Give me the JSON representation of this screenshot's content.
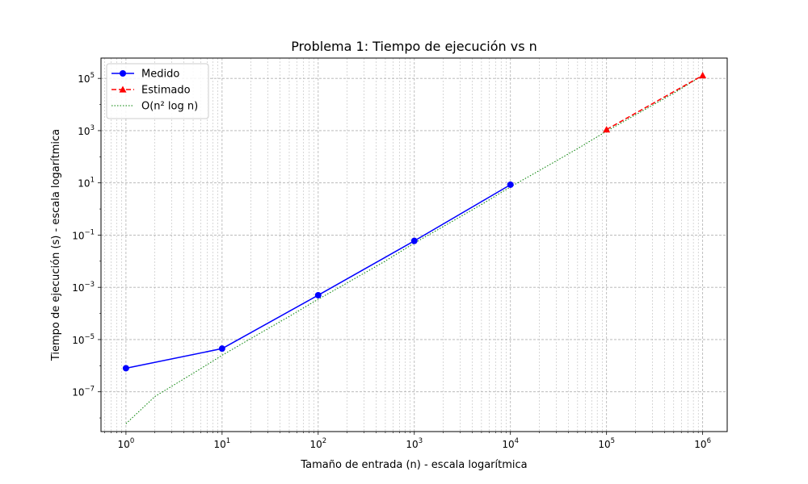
{
  "chart_data": {
    "type": "line",
    "title": "Problema 1: Tiempo de ejecución vs n",
    "xlabel": "Tamaño de entrada (n) - escala logarítmica",
    "ylabel": "Tiempo de ejecución (s) - escala logarítmica",
    "xscale": "log",
    "yscale": "log",
    "xlim": [
      0.55,
      1800000
    ],
    "ylim": [
      3e-09,
      600000
    ],
    "grid": true,
    "legend_position": "top-left",
    "x_ticks": [
      {
        "base": "10",
        "exp": "0",
        "value": 1
      },
      {
        "base": "10",
        "exp": "1",
        "value": 10
      },
      {
        "base": "10",
        "exp": "2",
        "value": 100
      },
      {
        "base": "10",
        "exp": "3",
        "value": 1000
      },
      {
        "base": "10",
        "exp": "4",
        "value": 10000
      },
      {
        "base": "10",
        "exp": "5",
        "value": 100000
      },
      {
        "base": "10",
        "exp": "6",
        "value": 1000000
      }
    ],
    "y_ticks": [
      {
        "base": "10",
        "exp": "−7",
        "value": 1e-07
      },
      {
        "base": "10",
        "exp": "−5",
        "value": 1e-05
      },
      {
        "base": "10",
        "exp": "−3",
        "value": 0.001
      },
      {
        "base": "10",
        "exp": "−1",
        "value": 0.1
      },
      {
        "base": "10",
        "exp": "1",
        "value": 10
      },
      {
        "base": "10",
        "exp": "3",
        "value": 1000
      },
      {
        "base": "10",
        "exp": "5",
        "value": 100000
      }
    ],
    "series": [
      {
        "name": "Medido",
        "color": "#0000ff",
        "linestyle": "solid",
        "marker": "circle",
        "x": [
          1,
          10,
          100,
          1000,
          10000
        ],
        "y": [
          8e-07,
          4.5e-06,
          0.0005,
          0.06,
          8.5
        ]
      },
      {
        "name": "Estimado",
        "color": "#ff0000",
        "linestyle": "dashed",
        "marker": "triangle",
        "x": [
          100000,
          1000000
        ],
        "y": [
          1100,
          130000
        ]
      },
      {
        "name": "O(n² log n)",
        "color": "#008000",
        "linestyle": "dotted",
        "marker": "none",
        "x": [
          1,
          2,
          5,
          10,
          20,
          50,
          100,
          200,
          500,
          1000,
          2000,
          5000,
          10000,
          20000,
          50000,
          100000,
          200000,
          500000,
          1000000
        ],
        "y": [
          6e-09,
          6.6e-08,
          5.1e-07,
          2.5e-06,
          1.1e-05,
          7.7e-05,
          0.00035,
          0.00147,
          0.0102,
          0.0495,
          0.212,
          1.48,
          7.0,
          29.7,
          205,
          949,
          4010,
          27000,
          130000
        ]
      }
    ]
  }
}
